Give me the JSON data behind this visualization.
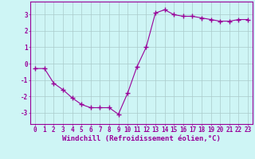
{
  "x": [
    0,
    1,
    2,
    3,
    4,
    5,
    6,
    7,
    8,
    9,
    10,
    11,
    12,
    13,
    14,
    15,
    16,
    17,
    18,
    19,
    20,
    21,
    22,
    23
  ],
  "y": [
    -0.3,
    -0.3,
    -1.2,
    -1.6,
    -2.1,
    -2.5,
    -2.7,
    -2.7,
    -2.7,
    -3.1,
    -1.8,
    -0.2,
    1.0,
    3.1,
    3.3,
    3.0,
    2.9,
    2.9,
    2.8,
    2.7,
    2.6,
    2.6,
    2.7,
    2.7
  ],
  "line_color": "#990099",
  "marker": "+",
  "markersize": 4,
  "linewidth": 0.8,
  "bg_color": "#cef5f5",
  "grid_color": "#aacaca",
  "xlabel": "Windchill (Refroidissement éolien,°C)",
  "xlabel_fontsize": 6.5,
  "tick_fontsize": 5.5,
  "ylim": [
    -3.7,
    3.8
  ],
  "xlim": [
    -0.5,
    23.5
  ],
  "yticks": [
    -3,
    -2,
    -1,
    0,
    1,
    2,
    3
  ],
  "xticks": [
    0,
    1,
    2,
    3,
    4,
    5,
    6,
    7,
    8,
    9,
    10,
    11,
    12,
    13,
    14,
    15,
    16,
    17,
    18,
    19,
    20,
    21,
    22,
    23
  ],
  "axis_line_color": "#990099"
}
